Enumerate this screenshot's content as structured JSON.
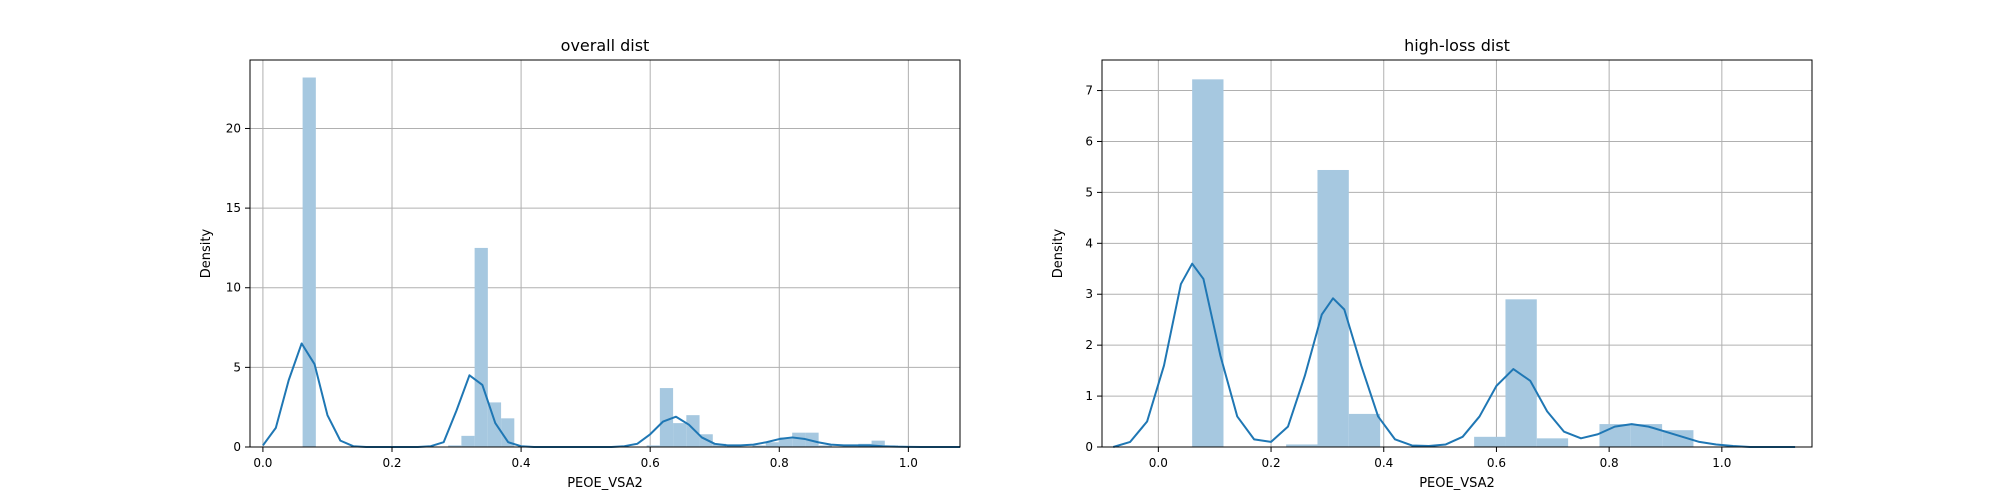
{
  "chart_data": [
    {
      "type": "bar",
      "title": "overall dist",
      "xlabel": "PEOE_VSA2",
      "ylabel": "Density",
      "xlim": [
        -0.02,
        1.08
      ],
      "ylim": [
        0,
        24.3
      ],
      "xticks": [
        "0.0",
        "0.2",
        "0.4",
        "0.6",
        "0.8",
        "1.0"
      ],
      "yticks": [
        "0",
        "5",
        "10",
        "15",
        "20"
      ],
      "grid": true,
      "histogram": {
        "bin_edges": [
          0.0,
          0.0205,
          0.041,
          0.0615,
          0.082,
          0.1025,
          0.123,
          0.1435,
          0.164,
          0.1845,
          0.205,
          0.2255,
          0.246,
          0.2665,
          0.287,
          0.3075,
          0.328,
          0.3485,
          0.369,
          0.3895,
          0.41,
          0.4305,
          0.451,
          0.4715,
          0.492,
          0.5125,
          0.533,
          0.5535,
          0.574,
          0.5945,
          0.615,
          0.6355,
          0.656,
          0.6765,
          0.697,
          0.7175,
          0.738,
          0.7585,
          0.779,
          0.7995,
          0.82,
          0.8405,
          0.861,
          0.8815,
          0.902,
          0.9225,
          0.943,
          0.9635,
          0.984
        ],
        "values": [
          0,
          0,
          0,
          23.2,
          0,
          0,
          0,
          0,
          0,
          0,
          0,
          0,
          0,
          0,
          0.1,
          0.7,
          12.5,
          2.8,
          1.8,
          0,
          0,
          0,
          0,
          0,
          0,
          0,
          0,
          0,
          0,
          0.1,
          3.7,
          1.5,
          2.0,
          0.8,
          0.2,
          0,
          0,
          0.1,
          0.3,
          0.6,
          0.9,
          0.9,
          0.1,
          0,
          0,
          0.2,
          0.4,
          0.1
        ]
      },
      "kde": {
        "x": [
          0.0,
          0.02,
          0.04,
          0.06,
          0.08,
          0.1,
          0.12,
          0.14,
          0.16,
          0.18,
          0.2,
          0.22,
          0.24,
          0.26,
          0.28,
          0.3,
          0.32,
          0.34,
          0.36,
          0.38,
          0.4,
          0.42,
          0.44,
          0.46,
          0.48,
          0.5,
          0.52,
          0.54,
          0.56,
          0.58,
          0.6,
          0.62,
          0.64,
          0.66,
          0.68,
          0.7,
          0.72,
          0.74,
          0.76,
          0.78,
          0.8,
          0.82,
          0.84,
          0.86,
          0.88,
          0.9,
          0.92,
          0.94,
          0.96,
          0.98,
          1.0,
          1.02,
          1.04,
          1.06,
          1.08
        ],
        "y": [
          0.1,
          1.2,
          4.2,
          6.5,
          5.2,
          2.0,
          0.4,
          0.05,
          0.0,
          0.0,
          0.0,
          0.0,
          0.0,
          0.05,
          0.3,
          2.3,
          4.5,
          3.9,
          1.5,
          0.3,
          0.05,
          0.0,
          0.0,
          0.0,
          0.0,
          0.0,
          0.0,
          0.0,
          0.05,
          0.2,
          0.8,
          1.6,
          1.9,
          1.4,
          0.6,
          0.2,
          0.1,
          0.1,
          0.15,
          0.3,
          0.5,
          0.6,
          0.5,
          0.3,
          0.15,
          0.1,
          0.1,
          0.1,
          0.05,
          0.02,
          0.01,
          0.0,
          0.0,
          0.0,
          0.0
        ]
      }
    },
    {
      "type": "bar",
      "title": "high-loss dist",
      "xlabel": "PEOE_VSA2",
      "ylabel": "Density",
      "xlim": [
        -0.1,
        1.16
      ],
      "ylim": [
        0,
        7.6
      ],
      "xticks": [
        "0.0",
        "0.2",
        "0.4",
        "0.6",
        "0.8",
        "1.0"
      ],
      "yticks": [
        "0",
        "1",
        "2",
        "3",
        "4",
        "5",
        "6",
        "7"
      ],
      "grid": true,
      "histogram": {
        "bin_edges": [
          0.06,
          0.1156,
          0.1712,
          0.2268,
          0.2824,
          0.338,
          0.3936,
          0.4492,
          0.5048,
          0.5604,
          0.616,
          0.6716,
          0.7272,
          0.7828,
          0.8384,
          0.894,
          0.9496
        ],
        "values": [
          7.22,
          0,
          0,
          0.05,
          5.44,
          0.65,
          0,
          0,
          0,
          0.2,
          2.9,
          0.17,
          0,
          0.45,
          0.45,
          0.33
        ]
      },
      "kde": {
        "x": [
          -0.08,
          -0.05,
          -0.02,
          0.01,
          0.04,
          0.06,
          0.08,
          0.11,
          0.14,
          0.17,
          0.2,
          0.23,
          0.26,
          0.29,
          0.31,
          0.33,
          0.36,
          0.39,
          0.42,
          0.45,
          0.48,
          0.51,
          0.54,
          0.57,
          0.6,
          0.63,
          0.66,
          0.69,
          0.72,
          0.75,
          0.78,
          0.81,
          0.84,
          0.87,
          0.9,
          0.93,
          0.96,
          0.99,
          1.02,
          1.05,
          1.08,
          1.11,
          1.13
        ],
        "y": [
          0.0,
          0.1,
          0.5,
          1.6,
          3.2,
          3.6,
          3.3,
          1.8,
          0.6,
          0.15,
          0.1,
          0.4,
          1.4,
          2.6,
          2.92,
          2.7,
          1.6,
          0.6,
          0.15,
          0.03,
          0.02,
          0.05,
          0.2,
          0.6,
          1.2,
          1.53,
          1.3,
          0.7,
          0.3,
          0.17,
          0.25,
          0.4,
          0.45,
          0.4,
          0.3,
          0.2,
          0.1,
          0.05,
          0.02,
          0.0,
          0.0,
          0.0,
          0.0
        ]
      }
    }
  ]
}
